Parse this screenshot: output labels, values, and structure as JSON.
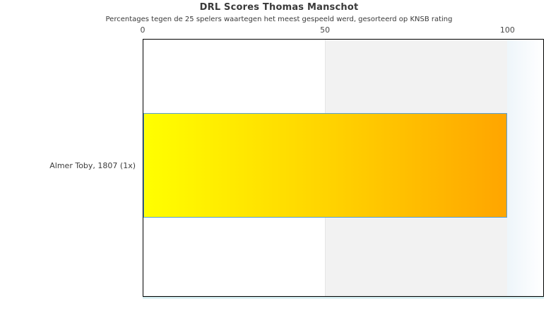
{
  "chart_data": {
    "type": "bar",
    "orientation": "horizontal",
    "title": "DRL Scores Thomas Manschot",
    "subtitle": "Percentages tegen de 25 spelers waartegen het meest gespeeld werd, gesorteerd op KNSB rating",
    "categories": [
      "Almer Toby, 1807 (1x)"
    ],
    "values": [
      100
    ],
    "xlabel": "",
    "ylabel": "",
    "xlim": [
      0,
      110
    ],
    "xticks": [
      0,
      50,
      100
    ],
    "axis_position": "top",
    "grid": "off",
    "legend": "none",
    "shaded_band": {
      "from": 50,
      "to": 100,
      "color": "#f2f2f2"
    },
    "right_band": {
      "from": 100,
      "to": 110,
      "gradient": [
        "#eef5fa",
        "#ffffff"
      ]
    },
    "bar_style": {
      "fill_gradient": [
        "#ffff00",
        "#ffd400",
        "#ffa500"
      ],
      "border_color": "#58a0d6"
    },
    "frame_color": "#000000",
    "text_color": "#3a3a3a"
  }
}
